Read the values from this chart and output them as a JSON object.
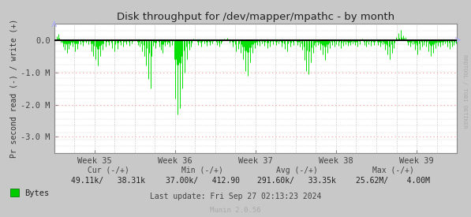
{
  "title": "Disk throughput for /dev/mapper/mpathc - by month",
  "ylabel": "Pr second read (-) / write (+)",
  "rrdtool_label": "RRDTOOL / TOBI OETIKER",
  "background_color": "#c8c8c8",
  "plot_bg_color": "#ffffff",
  "grid_color": "#aaaaaa",
  "ylim": [
    -3500000,
    500000
  ],
  "yticks": [
    0,
    -1000000,
    -2000000,
    -3000000
  ],
  "ytick_labels": [
    "0.0",
    "-1.0 M",
    "-2.0 M",
    "-3.0 M"
  ],
  "xtick_labels": [
    "Week 35",
    "Week 36",
    "Week 37",
    "Week 38",
    "Week 39"
  ],
  "line_color": "#00e000",
  "zero_line_color": "#000000",
  "ref_line_color": "#ff9999",
  "legend_label": "Bytes",
  "legend_color": "#00cc00",
  "footer_cur": "Cur (-/+)",
  "footer_min": "Min (-/+)",
  "footer_avg": "Avg (-/+)",
  "footer_max": "Max (-/+)",
  "footer_cur_val": "49.11k/   38.31k",
  "footer_min_val": "37.00k/   412.90",
  "footer_avg_val": "291.60k/   33.35k",
  "footer_max_val": "25.62M/    4.00M",
  "last_update": "Last update: Fri Sep 27 02:13:23 2024",
  "munin_version": "Munin 2.0.56"
}
